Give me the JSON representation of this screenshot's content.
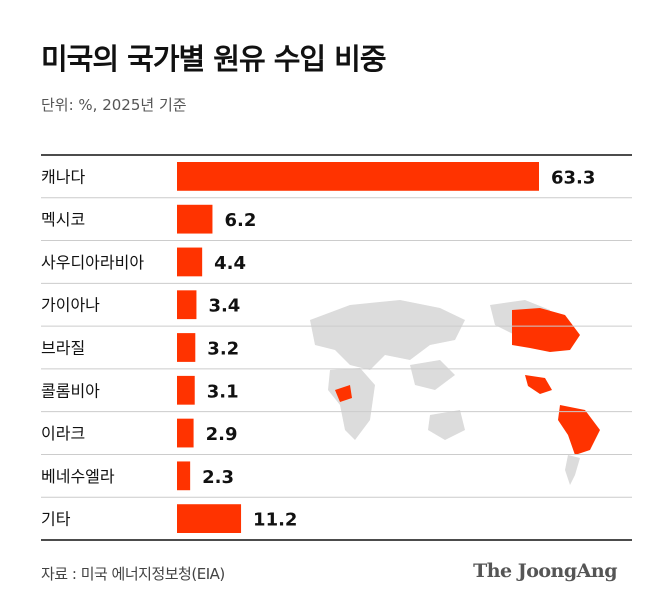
{
  "header": {
    "title": "미국의  국가별 원유 수입 비중",
    "subtitle": "단위: %, 2025년 기준"
  },
  "chart_data": {
    "type": "bar",
    "orientation": "horizontal",
    "title": "미국의  국가별 원유 수입 비중",
    "unit": "%",
    "categories": [
      "캐나다",
      "멕시코",
      "사우디아라비아",
      "가이아나",
      "브라질",
      "콜롬비아",
      "이라크",
      "베네수엘라",
      "기타"
    ],
    "values": [
      63.3,
      6.2,
      4.4,
      3.4,
      3.2,
      3.1,
      2.9,
      2.3,
      11.2
    ],
    "xlim": [
      0,
      63.3
    ],
    "bar_color": "#ff3300",
    "grid": false
  },
  "map": {
    "land_color": "#dcdcdc",
    "highlight_color": "#ff3300",
    "highlighted": [
      "캐나다",
      "멕시코",
      "사우디아라비아",
      "가이아나",
      "브라질",
      "콜롬비아",
      "이라크",
      "베네수엘라"
    ]
  },
  "footer": {
    "source": "자료 : 미국 에너지정보청(EIA)",
    "logo": "The JoongAng"
  }
}
